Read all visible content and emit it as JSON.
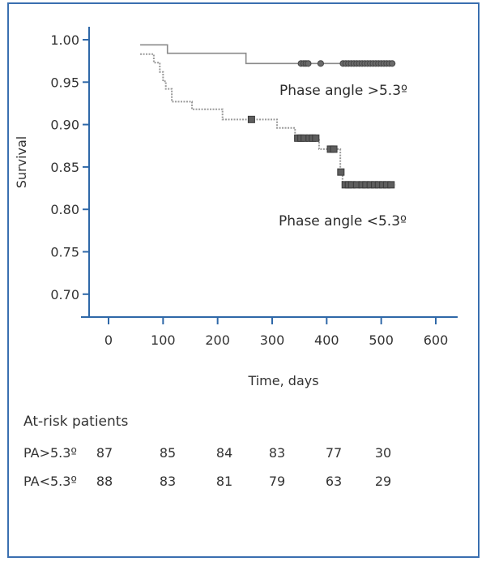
{
  "chart_data": {
    "type": "line",
    "subtype": "kaplan-meier",
    "title": "",
    "xlabel": "Time, days",
    "ylabel": "Survival",
    "xlim": [
      -35,
      640
    ],
    "ylim": [
      0.673,
      1.015
    ],
    "x_ticks": [
      0,
      100,
      200,
      300,
      400,
      500,
      600
    ],
    "x_tick_labels": [
      "0",
      "100",
      "200",
      "300",
      "400",
      "500",
      "600"
    ],
    "y_ticks": [
      1.0,
      0.95,
      0.9,
      0.85,
      0.8,
      0.75,
      0.7
    ],
    "y_tick_labels": [
      "1.00",
      "0.95",
      "0.90",
      "0.85",
      "0.80",
      "0.75",
      "0.70"
    ],
    "grid": false,
    "series": [
      {
        "name": "Phase angle >5.3º",
        "label": "Phase angle >5.3º",
        "line_style": "solid",
        "color": "#8a8a8a",
        "censor_marker": "circle",
        "steps": [
          {
            "t": 58,
            "s": 0.994
          },
          {
            "t": 108,
            "s": 0.984
          },
          {
            "t": 252,
            "s": 0.972
          },
          {
            "t": 526,
            "s": 0.972
          }
        ],
        "censored_t": [
          353,
          358,
          362,
          366,
          389,
          430,
          435,
          440,
          445,
          450,
          455,
          460,
          465,
          470,
          475,
          480,
          485,
          490,
          495,
          500,
          505,
          510,
          515,
          520
        ]
      },
      {
        "name": "Phase angle <5.3º",
        "label": "Phase angle <5.3º",
        "line_style": "dotted",
        "color": "#9a9a9a",
        "censor_marker": "square",
        "steps": [
          {
            "t": 58,
            "s": 0.983
          },
          {
            "t": 83,
            "s": 0.973
          },
          {
            "t": 94,
            "s": 0.962
          },
          {
            "t": 100,
            "s": 0.951
          },
          {
            "t": 105,
            "s": 0.942
          },
          {
            "t": 116,
            "s": 0.927
          },
          {
            "t": 153,
            "s": 0.918
          },
          {
            "t": 209,
            "s": 0.906
          },
          {
            "t": 309,
            "s": 0.896
          },
          {
            "t": 342,
            "s": 0.884
          },
          {
            "t": 386,
            "s": 0.871
          },
          {
            "t": 425,
            "s": 0.844
          },
          {
            "t": 429,
            "s": 0.829
          },
          {
            "t": 526,
            "s": 0.829
          }
        ],
        "censored": [
          {
            "t": 262,
            "s": 0.906
          },
          {
            "t": 347,
            "s": 0.884
          },
          {
            "t": 353,
            "s": 0.884
          },
          {
            "t": 359,
            "s": 0.884
          },
          {
            "t": 368,
            "s": 0.884
          },
          {
            "t": 374,
            "s": 0.884
          },
          {
            "t": 380,
            "s": 0.884
          },
          {
            "t": 407,
            "s": 0.871
          },
          {
            "t": 413,
            "s": 0.871
          },
          {
            "t": 426,
            "s": 0.844
          },
          {
            "t": 434,
            "s": 0.829
          },
          {
            "t": 440,
            "s": 0.829
          },
          {
            "t": 446,
            "s": 0.829
          },
          {
            "t": 455,
            "s": 0.829
          },
          {
            "t": 465,
            "s": 0.829
          },
          {
            "t": 472,
            "s": 0.829
          },
          {
            "t": 480,
            "s": 0.829
          },
          {
            "t": 488,
            "s": 0.829
          },
          {
            "t": 495,
            "s": 0.829
          },
          {
            "t": 503,
            "s": 0.829
          },
          {
            "t": 510,
            "s": 0.829
          },
          {
            "t": 518,
            "s": 0.829
          }
        ]
      }
    ],
    "annotations": [
      {
        "text": "Phase angle >5.3º",
        "series": "Phase angle >5.3º",
        "placement": "below-right of curve"
      },
      {
        "text": "Phase angle <5.3º",
        "series": "Phase angle <5.3º",
        "placement": "below-right of curve"
      }
    ],
    "axis_color": "#2f68a8",
    "frame_color": "#3a6fb0"
  },
  "at_risk": {
    "title": "At-risk patients",
    "rows": [
      {
        "label": "PA>5.3º",
        "values": [
          "87",
          "85",
          "84",
          "83",
          "77",
          "30"
        ]
      },
      {
        "label": "PA<5.3º",
        "values": [
          "88",
          "83",
          "81",
          "79",
          "63",
          "29"
        ]
      }
    ]
  }
}
